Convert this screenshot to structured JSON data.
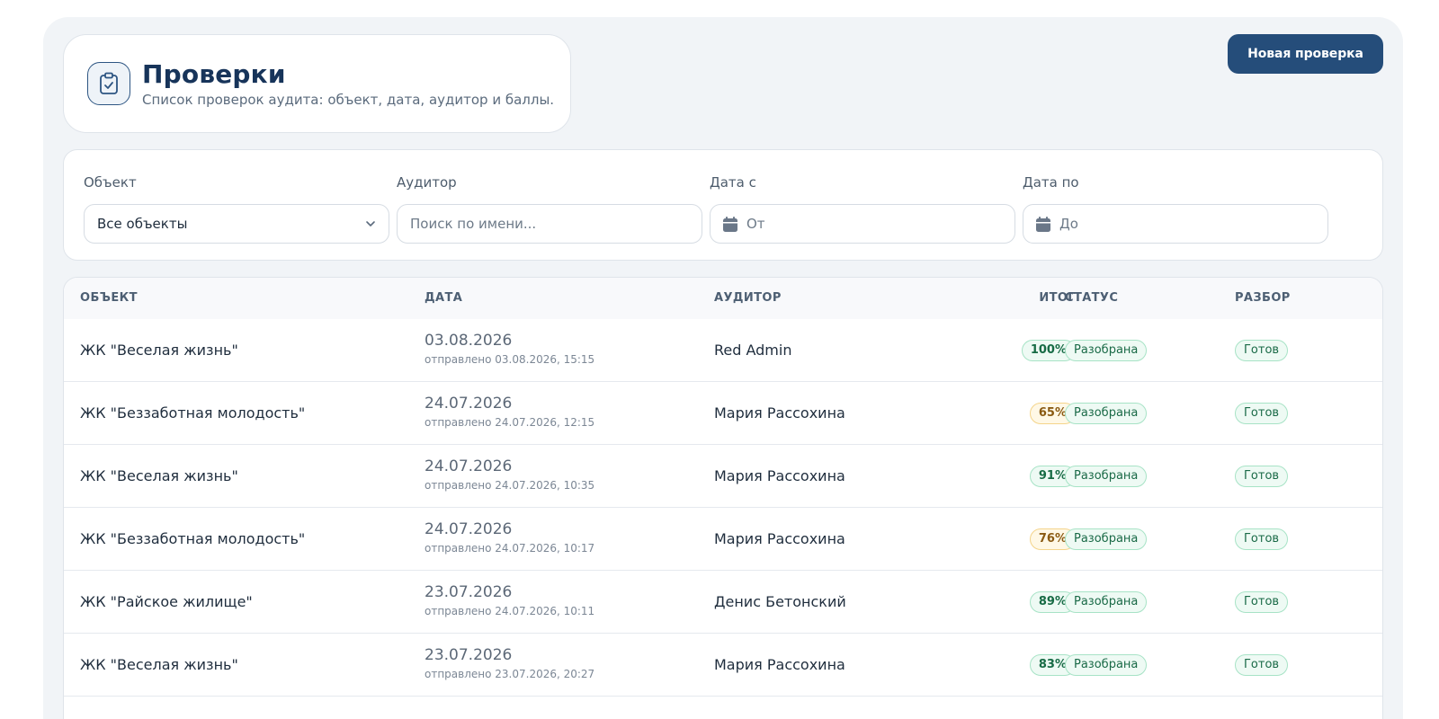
{
  "header": {
    "title": "Проверки",
    "subtitle": "Список проверок аудита: объект, дата, аудитор и баллы.",
    "new_button": "Новая проверка"
  },
  "filters": {
    "object_label": "Объект",
    "object_value": "Все объекты",
    "auditor_label": "Аудитор",
    "auditor_placeholder": "Поиск по имени...",
    "date_from_label": "Дата с",
    "date_from_placeholder": "От",
    "date_to_label": "Дата по",
    "date_to_placeholder": "До"
  },
  "table": {
    "headers": {
      "object": "ОБЪЕКТ",
      "date": "ДАТА",
      "auditor": "АУДИТОР",
      "score": "ИТОГ",
      "status": "СТАТУС",
      "review": "РАЗБОР"
    },
    "rows": [
      {
        "object": "ЖК \"Веселая жизнь\"",
        "date": "03.08.2026",
        "sent": "отправлено 03.08.2026, 15:15",
        "auditor": "Red Admin",
        "score": "100%",
        "score_level": "green",
        "status": "Разобрана",
        "review": "Готов"
      },
      {
        "object": "ЖК \"Беззаботная молодость\"",
        "date": "24.07.2026",
        "sent": "отправлено 24.07.2026, 12:15",
        "auditor": "Мария Рассохина",
        "score": "65%",
        "score_level": "yellow",
        "status": "Разобрана",
        "review": "Готов"
      },
      {
        "object": "ЖК \"Веселая жизнь\"",
        "date": "24.07.2026",
        "sent": "отправлено 24.07.2026, 10:35",
        "auditor": "Мария Рассохина",
        "score": "91%",
        "score_level": "green",
        "status": "Разобрана",
        "review": "Готов"
      },
      {
        "object": "ЖК \"Беззаботная молодость\"",
        "date": "24.07.2026",
        "sent": "отправлено 24.07.2026, 10:17",
        "auditor": "Мария Рассохина",
        "score": "76%",
        "score_level": "yellow",
        "status": "Разобрана",
        "review": "Готов"
      },
      {
        "object": "ЖК \"Райское жилище\"",
        "date": "23.07.2026",
        "sent": "отправлено 24.07.2026, 10:11",
        "auditor": "Денис Бетонский",
        "score": "89%",
        "score_level": "green",
        "status": "Разобрана",
        "review": "Готов"
      },
      {
        "object": "ЖК \"Веселая жизнь\"",
        "date": "23.07.2026",
        "sent": "отправлено 23.07.2026, 20:27",
        "auditor": "Мария Рассохина",
        "score": "83%",
        "score_level": "green",
        "status": "Разобрана",
        "review": "Готов"
      }
    ]
  },
  "colors": {
    "accent": "#254d7a",
    "title": "#17345a",
    "score_green": "#176b45",
    "score_yellow": "#8a5a12"
  },
  "icons": {
    "header": "clipboard-check-icon",
    "select": "chevron-down-icon",
    "date": "calendar-icon"
  }
}
